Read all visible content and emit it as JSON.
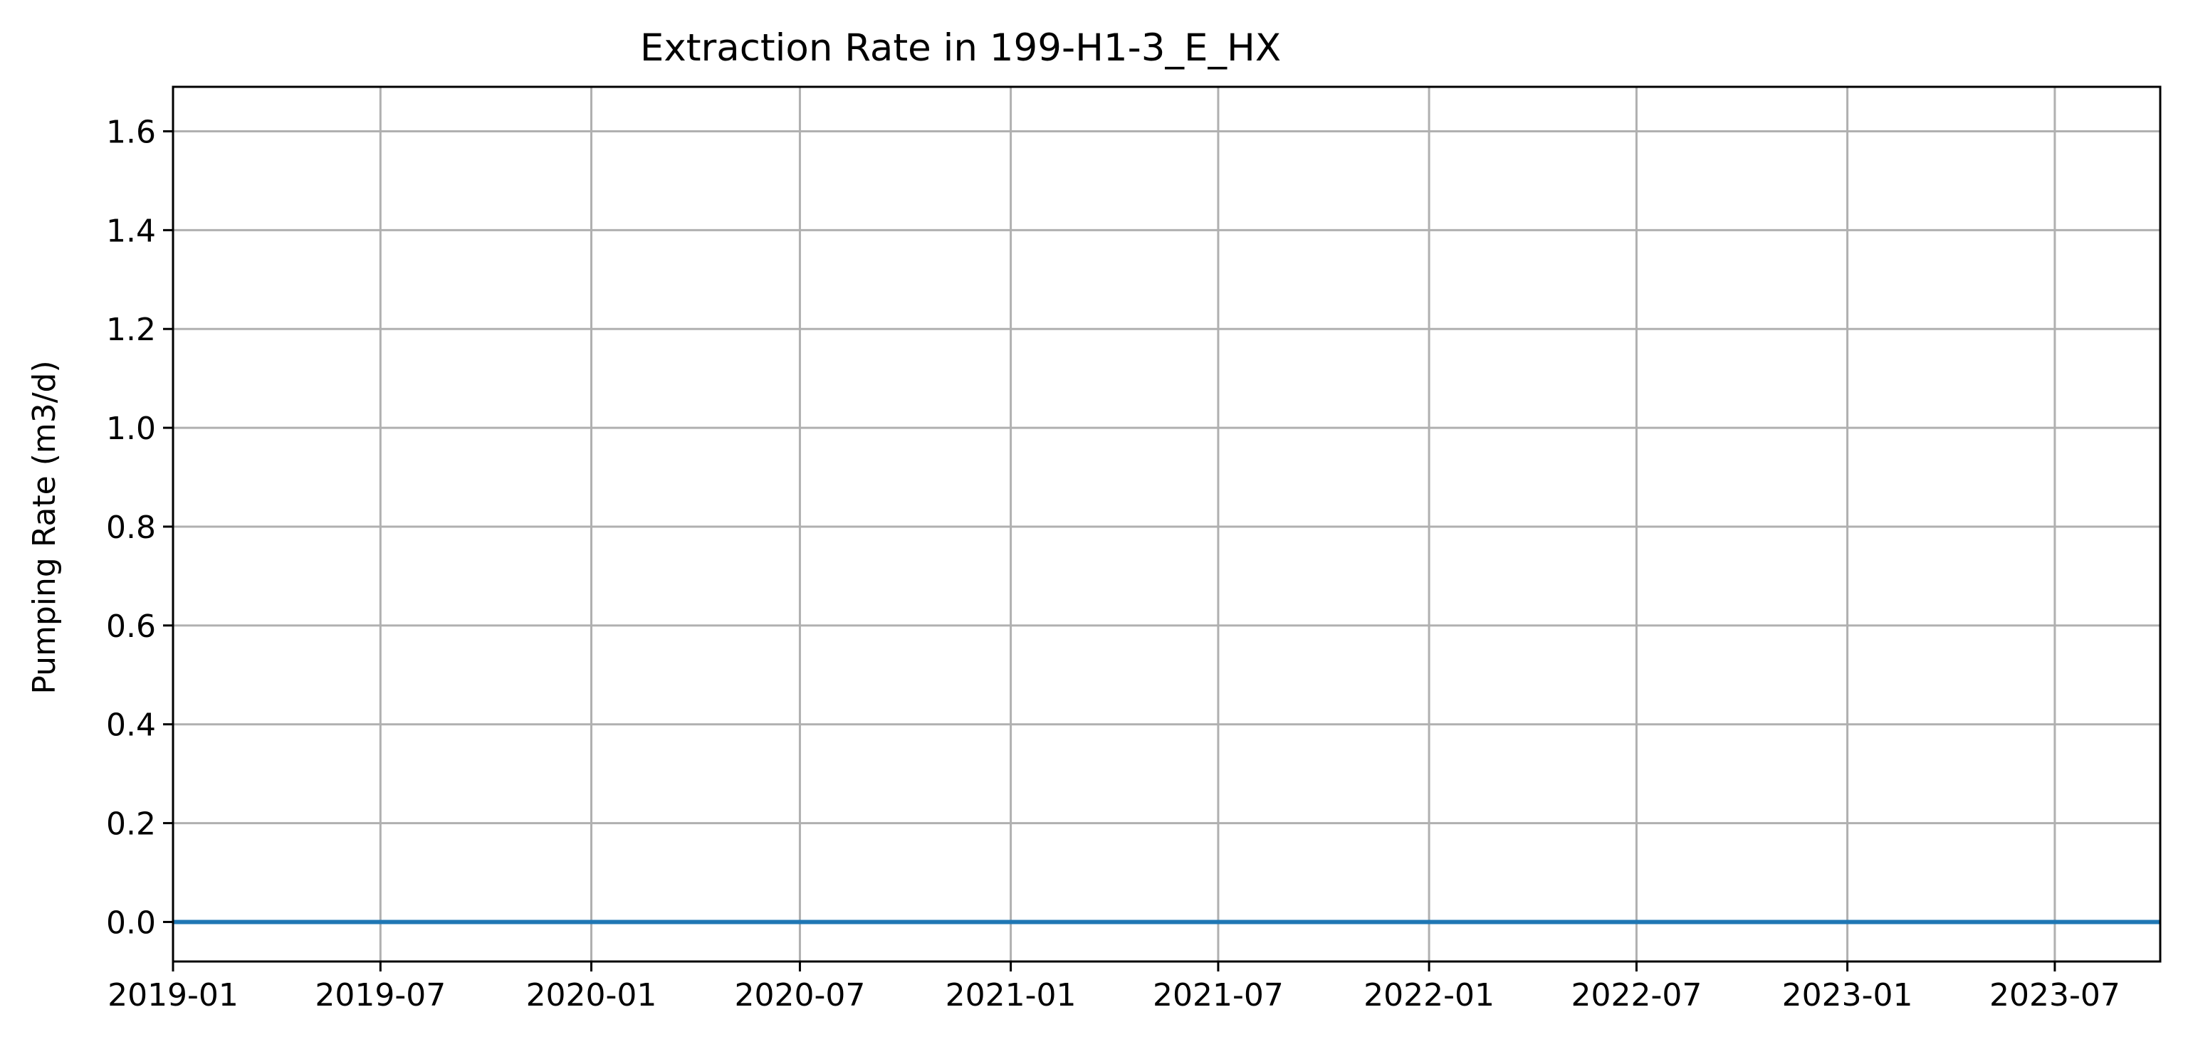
{
  "chart_data": {
    "type": "line",
    "title": "Extraction Rate in 199-H1-3_E_HX",
    "xlabel": "",
    "ylabel": "Pumping Rate (m3/d)",
    "x_scale": "date",
    "xlim": [
      "2019-01-01",
      "2023-10-01"
    ],
    "ylim": [
      -0.08,
      1.69
    ],
    "x_ticks": [
      "2019-01",
      "2019-07",
      "2020-01",
      "2020-07",
      "2021-01",
      "2021-07",
      "2022-01",
      "2022-07",
      "2023-01",
      "2023-07"
    ],
    "y_ticks": [
      "0.0",
      "0.2",
      "0.4",
      "0.6",
      "0.8",
      "1.0",
      "1.2",
      "1.4",
      "1.6"
    ],
    "grid": true,
    "legend": "none",
    "series": [
      {
        "color": "#1f77b4",
        "x": [
          "2019-01-01",
          "2023-10-01"
        ],
        "y": [
          0.0,
          0.0
        ]
      }
    ]
  }
}
